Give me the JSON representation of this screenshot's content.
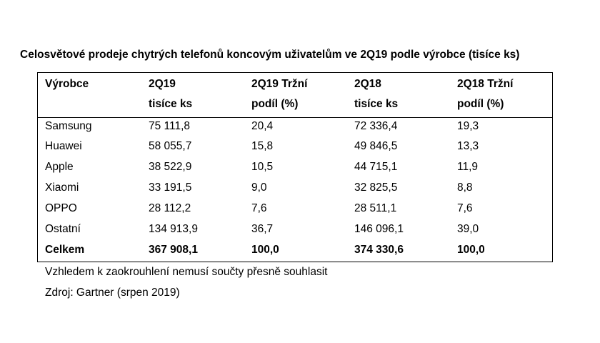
{
  "title": "Celosvětové prodeje chytrých telefonů koncovým uživatelům ve 2Q19 podle výrobce (tisíce ks)",
  "headers": [
    [
      "Výrobce",
      ""
    ],
    [
      "2Q19",
      "tisíce ks"
    ],
    [
      "2Q19 Tržní",
      "podíl (%)"
    ],
    [
      "2Q18",
      "tisíce ks"
    ],
    [
      "2Q18 Tržní",
      "podíl (%)"
    ]
  ],
  "rows": [
    [
      "Samsung",
      "75 111,8",
      "20,4",
      "72 336,4",
      "19,3"
    ],
    [
      "Huawei",
      "58 055,7",
      "15,8",
      "49 846,5",
      "13,3"
    ],
    [
      "Apple",
      "38 522,9",
      "10,5",
      "44 715,1",
      "11,9"
    ],
    [
      "Xiaomi",
      "33 191,5",
      "9,0",
      "32 825,5",
      "8,8"
    ],
    [
      "OPPO",
      "28 112,2",
      "7,6",
      "28 511,1",
      "7,6"
    ],
    [
      "Ostatní",
      "134 913,9",
      "36,7",
      "146 096,1",
      "39,0"
    ]
  ],
  "total": [
    "Celkem",
    "367 908,1",
    "100,0",
    "374 330,6",
    "100,0"
  ],
  "notes": [
    "Vzhledem k zaokrouhlení nemusí součty přesně souhlasit",
    "Zdroj: Gartner (srpen 2019)"
  ]
}
